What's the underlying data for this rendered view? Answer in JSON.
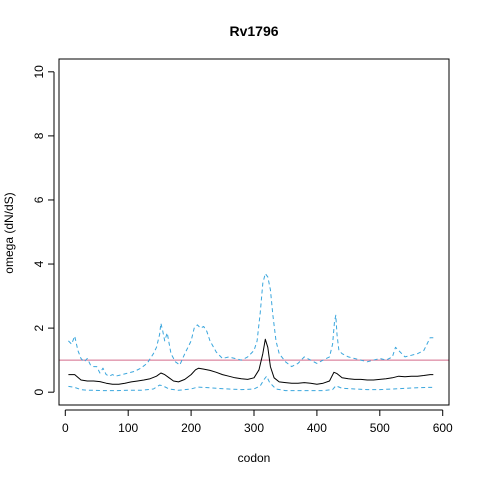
{
  "chart_data": {
    "type": "line",
    "title": "Rv1796",
    "xlabel": "codon",
    "ylabel": "omega (dN/dS)",
    "xlim": [
      -10,
      610
    ],
    "ylim": [
      -0.4,
      10.4
    ],
    "xticks": [
      0,
      100,
      200,
      300,
      400,
      500,
      600
    ],
    "yticks": [
      0,
      2,
      4,
      6,
      8,
      10
    ],
    "grid": false,
    "legend": "none",
    "reference_line": {
      "y": 1.0,
      "color": "#d36a8a"
    },
    "colors": {
      "mean": "#000000",
      "bounds": "#3aa6dd"
    },
    "series": [
      {
        "role": "mean",
        "style": "solid",
        "x": [
          5,
          15,
          25,
          35,
          45,
          55,
          65,
          75,
          85,
          95,
          105,
          115,
          125,
          135,
          145,
          152,
          158,
          165,
          172,
          180,
          190,
          200,
          207,
          212,
          220,
          230,
          240,
          250,
          260,
          270,
          280,
          290,
          300,
          308,
          314,
          318,
          322,
          326,
          332,
          340,
          350,
          360,
          370,
          380,
          390,
          400,
          410,
          420,
          427,
          432,
          440,
          450,
          460,
          470,
          480,
          490,
          500,
          510,
          520,
          530,
          540,
          550,
          560,
          570,
          580,
          585
        ],
        "y": [
          0.55,
          0.55,
          0.38,
          0.35,
          0.35,
          0.33,
          0.28,
          0.25,
          0.25,
          0.28,
          0.32,
          0.35,
          0.38,
          0.42,
          0.5,
          0.6,
          0.55,
          0.45,
          0.35,
          0.32,
          0.4,
          0.55,
          0.7,
          0.75,
          0.72,
          0.68,
          0.62,
          0.55,
          0.5,
          0.45,
          0.42,
          0.4,
          0.45,
          0.7,
          1.2,
          1.65,
          1.4,
          0.8,
          0.45,
          0.32,
          0.3,
          0.28,
          0.28,
          0.3,
          0.28,
          0.25,
          0.28,
          0.35,
          0.62,
          0.58,
          0.45,
          0.42,
          0.4,
          0.4,
          0.38,
          0.38,
          0.4,
          0.42,
          0.45,
          0.5,
          0.48,
          0.5,
          0.5,
          0.52,
          0.55,
          0.55
        ]
      },
      {
        "role": "upper",
        "style": "dashed",
        "x": [
          5,
          10,
          15,
          20,
          25,
          30,
          35,
          40,
          45,
          50,
          55,
          60,
          65,
          70,
          75,
          80,
          90,
          100,
          110,
          120,
          130,
          140,
          145,
          150,
          152,
          155,
          158,
          162,
          168,
          175,
          182,
          190,
          200,
          205,
          210,
          215,
          220,
          225,
          230,
          240,
          250,
          260,
          270,
          280,
          290,
          300,
          305,
          310,
          314,
          318,
          322,
          326,
          330,
          335,
          340,
          350,
          360,
          370,
          380,
          390,
          400,
          410,
          420,
          425,
          428,
          430,
          432,
          435,
          440,
          450,
          460,
          470,
          480,
          490,
          500,
          510,
          520,
          525,
          530,
          535,
          540,
          550,
          560,
          570,
          575,
          580,
          585
        ],
        "y": [
          1.6,
          1.5,
          1.75,
          1.3,
          1.05,
          0.95,
          1.05,
          0.85,
          0.8,
          0.8,
          0.6,
          0.75,
          0.55,
          0.5,
          0.55,
          0.5,
          0.55,
          0.6,
          0.65,
          0.75,
          0.9,
          1.2,
          1.4,
          1.8,
          2.15,
          1.9,
          1.6,
          1.85,
          1.2,
          0.95,
          0.85,
          1.2,
          1.6,
          2.0,
          2.1,
          2.0,
          2.05,
          1.9,
          1.6,
          1.25,
          1.05,
          1.1,
          1.05,
          1.0,
          1.1,
          1.3,
          1.6,
          2.5,
          3.4,
          3.7,
          3.6,
          3.2,
          2.4,
          1.6,
          1.2,
          0.95,
          0.8,
          0.9,
          1.1,
          1.0,
          0.9,
          1.0,
          1.1,
          1.5,
          2.2,
          2.4,
          1.8,
          1.3,
          1.2,
          1.1,
          1.05,
          1.0,
          0.95,
          1.0,
          1.05,
          1.0,
          1.1,
          1.4,
          1.3,
          1.2,
          1.1,
          1.15,
          1.2,
          1.3,
          1.5,
          1.7,
          1.7
        ]
      },
      {
        "role": "lower",
        "style": "dashed",
        "x": [
          5,
          15,
          25,
          35,
          45,
          60,
          80,
          100,
          120,
          140,
          150,
          155,
          165,
          180,
          200,
          210,
          220,
          240,
          260,
          280,
          300,
          310,
          316,
          320,
          325,
          335,
          350,
          370,
          390,
          410,
          425,
          430,
          440,
          460,
          480,
          500,
          520,
          540,
          560,
          575,
          585
        ],
        "y": [
          0.18,
          0.15,
          0.08,
          0.06,
          0.06,
          0.05,
          0.05,
          0.06,
          0.06,
          0.1,
          0.22,
          0.2,
          0.1,
          0.06,
          0.1,
          0.16,
          0.15,
          0.12,
          0.1,
          0.08,
          0.1,
          0.2,
          0.4,
          0.5,
          0.3,
          0.1,
          0.05,
          0.05,
          0.05,
          0.05,
          0.08,
          0.2,
          0.12,
          0.1,
          0.08,
          0.08,
          0.1,
          0.12,
          0.14,
          0.15,
          0.15
        ]
      }
    ]
  }
}
